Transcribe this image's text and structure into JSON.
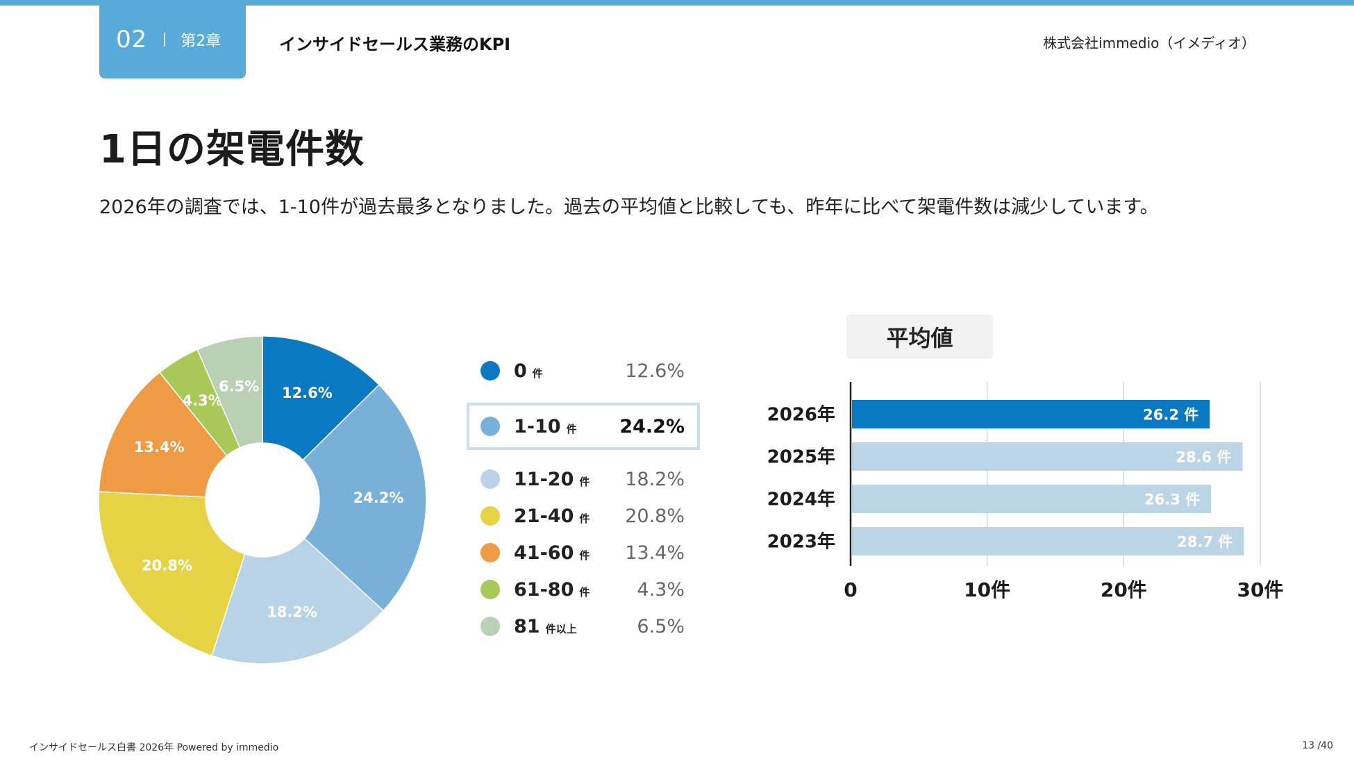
{
  "header": {
    "chapter_number": "02",
    "chapter_label": "第2章",
    "section_title": "インサイドセールス業務のKPI",
    "company": "株式会社immedio（イメディオ）"
  },
  "page_title": "1日の架電件数",
  "description": "2026年の調査では、1-10件が過去最多となりました。過去の平均値と比較しても、昨年に比べて架電件数は減少しています。",
  "chart_data": [
    {
      "type": "pie",
      "donut": true,
      "categories": [
        "0",
        "1-10",
        "11-20",
        "21-40",
        "41-60",
        "61-80",
        "81"
      ],
      "units": [
        "件",
        "件",
        "件",
        "件",
        "件",
        "件",
        "件以上"
      ],
      "values": [
        12.6,
        24.2,
        18.2,
        20.8,
        13.4,
        4.3,
        6.5
      ],
      "value_labels": [
        "12.6%",
        "24.2%",
        "18.2%",
        "20.8%",
        "13.4%",
        "4.3%",
        "6.5%"
      ],
      "colors": [
        "#0b78c2",
        "#78b0da",
        "#b9d3e6",
        "#e6d345",
        "#ef9b45",
        "#a8c957",
        "#b9d0b5"
      ],
      "highlighted_category": "1-10",
      "legend_placement": "right"
    },
    {
      "type": "bar",
      "orientation": "horizontal",
      "title": "平均値",
      "categories": [
        "2026年",
        "2025年",
        "2024年",
        "2023年"
      ],
      "values": [
        26.2,
        28.6,
        26.3,
        28.7
      ],
      "value_labels": [
        "26.2 件",
        "28.6 件",
        "26.3 件",
        "28.7 件"
      ],
      "colors": [
        "#0b78c2",
        "#bcd5e6",
        "#bcd5e6",
        "#bcd5e6"
      ],
      "xlim": [
        0,
        30
      ],
      "xticks": [
        0,
        10,
        20,
        30
      ],
      "xtick_labels": [
        "0",
        "10件",
        "20件",
        "30件"
      ],
      "grid": true
    }
  ],
  "footer": {
    "left": "インサイドセールス白書 2026年 Powered by immedio",
    "page": "13 /40"
  }
}
